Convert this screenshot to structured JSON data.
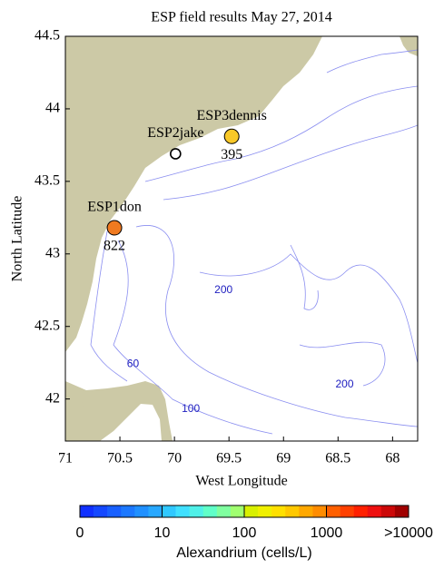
{
  "title": "ESP field results May 27, 2014",
  "x_axis": {
    "label": "West Longitude",
    "lim": [
      71,
      67.77
    ],
    "ticks": [
      71,
      70.5,
      70,
      69.5,
      69,
      68.5,
      68
    ]
  },
  "y_axis": {
    "label": "North Latitude",
    "lim": [
      41.71,
      44.5
    ],
    "ticks": [
      42,
      42.5,
      43,
      43.5,
      44,
      44.5
    ]
  },
  "stations": [
    {
      "name": "ESP1don",
      "lon": 70.55,
      "lat": 43.18,
      "value": 822,
      "color": "#f07a20"
    },
    {
      "name": "ESP2jake",
      "lon": 69.99,
      "lat": 43.69
    },
    {
      "name": "ESP3dennis",
      "lon": 69.475,
      "lat": 43.81,
      "value": 395,
      "color": "#f8c828"
    }
  ],
  "contour_labels": [
    {
      "depth": 60,
      "lon": 70.38,
      "lat": 42.24
    },
    {
      "depth": 100,
      "lon": 69.85,
      "lat": 41.93
    },
    {
      "depth": 200,
      "lon": 69.55,
      "lat": 42.75
    },
    {
      "depth": 200,
      "lon": 68.44,
      "lat": 42.1
    }
  ],
  "colorbar": {
    "label": "Alexandrium (cells/L)",
    "scale": "log",
    "ticks": [
      0,
      10,
      100,
      1000,
      {
        "value": 10000,
        "label": ">10000"
      }
    ],
    "colors": [
      "#1030ff",
      "#1448ff",
      "#1860ff",
      "#1c78ff",
      "#2090ff",
      "#28a8ff",
      "#30c8ff",
      "#40e0ff",
      "#50f0e8",
      "#60ffc8",
      "#80ffa0",
      "#a0ff70",
      "#d8f000",
      "#f0f000",
      "#ffe000",
      "#ffc800",
      "#ffa800",
      "#ff8c00",
      "#ff6000",
      "#ff4000",
      "#ff2000",
      "#ee1010",
      "#cc0808",
      "#a00000"
    ]
  }
}
